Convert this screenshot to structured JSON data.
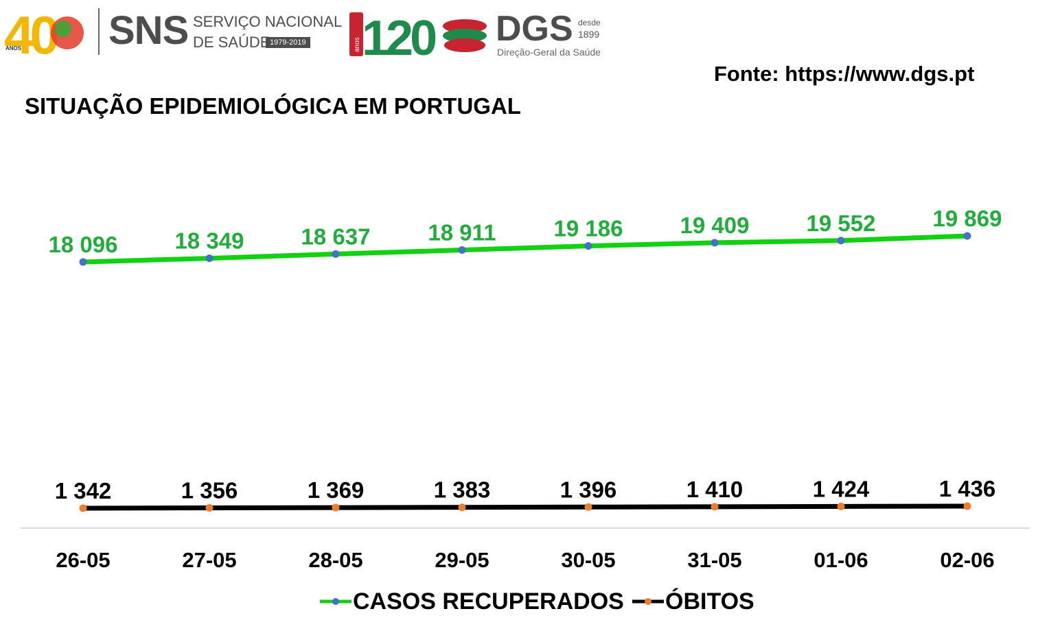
{
  "header": {
    "sns_logo": {
      "anos_number": "40",
      "anos_label": "ANOS",
      "name": "SNS",
      "line1": "SERVIÇO NACIONAL",
      "line2": "DE SAÚDE",
      "years": "1979-2019"
    },
    "dgs_logo": {
      "number": "120",
      "anos_label": "anos",
      "name": "DGS",
      "desde": "desde",
      "since_year": "1899",
      "subtitle": "Direção-Geral da Saúde"
    },
    "source": "Fonte: https://www.dgs.pt"
  },
  "colors": {
    "recuperados": "#12d012",
    "recuperados_marker": "#4472c4",
    "recuperados_label": "#21ad3c",
    "obitos": "#000000",
    "obitos_marker": "#ed7d31",
    "axis": "#d9d9d9"
  },
  "chart_data": {
    "type": "line",
    "title": "SITUAÇÃO EPIDEMIOLÓGICA EM PORTUGAL",
    "categories": [
      "26-05",
      "27-05",
      "28-05",
      "29-05",
      "30-05",
      "31-05",
      "01-06",
      "02-06"
    ],
    "series": [
      {
        "name": "CASOS RECUPERADOS",
        "values": [
          18096,
          18349,
          18637,
          18911,
          19186,
          19409,
          19552,
          19869
        ],
        "labels": [
          "18 096",
          "18 349",
          "18 637",
          "18 911",
          "19 186",
          "19 409",
          "19 552",
          "19 869"
        ]
      },
      {
        "name": "ÓBITOS",
        "values": [
          1342,
          1356,
          1369,
          1383,
          1396,
          1410,
          1424,
          1436
        ],
        "labels": [
          "1 342",
          "1 356",
          "1 369",
          "1 383",
          "1 396",
          "1 410",
          "1 424",
          "1 436"
        ]
      }
    ],
    "xlabel": "",
    "ylabel": "",
    "grid": false,
    "legend": "bottom"
  }
}
